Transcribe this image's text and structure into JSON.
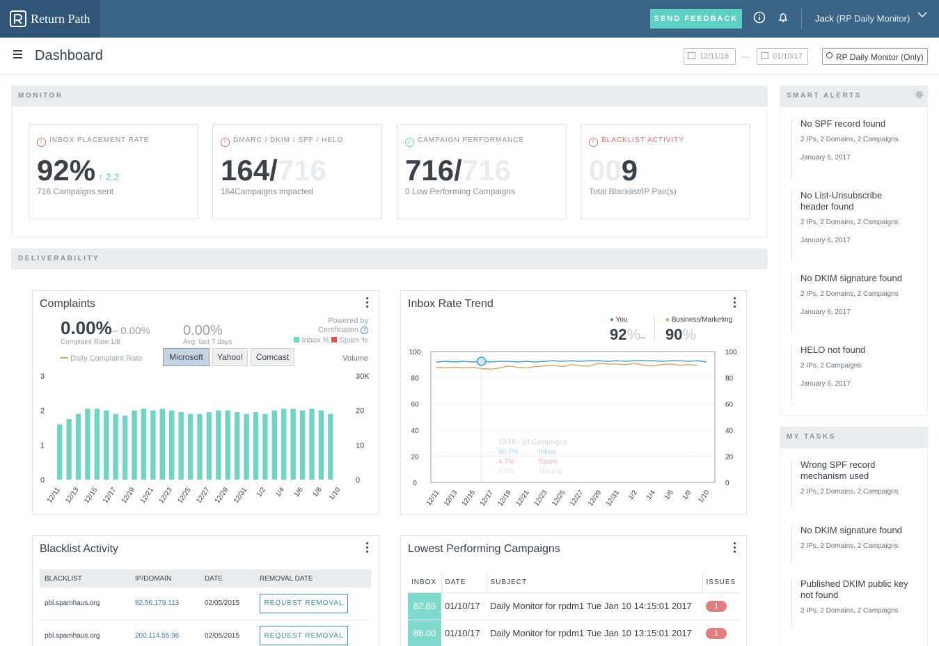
{
  "app": {
    "logo_text": "Return Path",
    "feedback_label": "SEND FEEDBACK",
    "user_name": "Jack",
    "user_account": "(RP Daily Monitor)"
  },
  "toolbar": {
    "page_title": "Dashboard",
    "date_from": "12/11/16",
    "date_to": "01/10/17",
    "date_sep": "—",
    "search_value": "RP Daily Monitor (Only)"
  },
  "monitor": {
    "header": "MONITOR",
    "cards": [
      {
        "label": "INBOX PLACEMENT RATE",
        "value": "92%",
        "delta": "2.2",
        "sub": "716 Campaigns sent"
      },
      {
        "label": "DMARC / DKIM / SPF / HELO",
        "value": "164/",
        "faded": "716",
        "sub": "164Campaigns impacted"
      },
      {
        "label": "CAMPAIGN PERFORMANCE",
        "value": "716/",
        "faded": "716",
        "sub": "0 Low Performing Campaigns"
      },
      {
        "label": "BLACKLIST ACTIVITY",
        "faded": "00",
        "value": "9",
        "sub": "Total Blacklist/IP Pair(s)"
      }
    ]
  },
  "deliverability": {
    "header": "DELIVERABILITY"
  },
  "complaints": {
    "title": "Complaints",
    "rate": "0.00%",
    "rate_compare": "– 0.00%",
    "rate_label": "Complaint Rate 1/8",
    "avg": "0.00%",
    "avg_label": "Avg. last 7 days",
    "powered_by": "Powered by",
    "certification": "Certification",
    "legend_inbox": "Inbox %",
    "legend_spam": "Spam %",
    "legend_daily": "Daily Complaint Rate",
    "volume_label": "Volume",
    "isp_buttons": [
      "Microsoft",
      "Yahoo!",
      "Comcast"
    ]
  },
  "inbox_trend": {
    "title": "Inbox Rate Trend",
    "you_label": "You",
    "you_value": "92",
    "you_pct": "%",
    "you_dash": "--",
    "biz_label": "Business/Marketing",
    "biz_value": "90",
    "biz_pct": "%",
    "tooltip": [
      "12/16 - 24 Campaigns",
      "90.7%",
      "Inbox",
      "4.7%",
      "Spam",
      "4.6%",
      "Missing"
    ]
  },
  "chart_data": [
    {
      "type": "bar",
      "title": "Complaints",
      "categories": [
        "12/11",
        "12/12",
        "12/13",
        "12/14",
        "12/15",
        "12/16",
        "12/17",
        "12/18",
        "12/19",
        "12/20",
        "12/21",
        "12/22",
        "12/23",
        "12/24",
        "12/25",
        "12/26",
        "12/27",
        "12/28",
        "12/29",
        "12/30",
        "12/31",
        "1/1",
        "1/2",
        "1/3",
        "1/4",
        "1/5",
        "1/6",
        "1/7",
        "1/8",
        "1/9",
        "1/10"
      ],
      "tick_labels": [
        "12/11",
        "12/13",
        "12/15",
        "12/17",
        "12/19",
        "12/21",
        "12/23",
        "12/25",
        "12/27",
        "12/29",
        "12/31",
        "1/2",
        "1/4",
        "1/6",
        "1/8",
        "1/10"
      ],
      "series": [
        {
          "name": "Volume",
          "values": [
            16000,
            17500,
            19000,
            20500,
            20500,
            20000,
            19000,
            18500,
            20000,
            20500,
            20000,
            20500,
            20000,
            19500,
            19000,
            19000,
            19500,
            20000,
            20000,
            19500,
            19000,
            19500,
            19000,
            20000,
            20500,
            20500,
            20000,
            20500,
            20000,
            19000,
            null
          ]
        }
      ],
      "yleft_ticks": [
        "0",
        "1",
        "2",
        "3"
      ],
      "yright_ticks": [
        "0",
        "10",
        "20",
        "30K"
      ],
      "ylim": [
        0,
        30000
      ],
      "colors": {
        "bar": "#6fd4c2",
        "complaint_line": "#e0a458"
      }
    },
    {
      "type": "line",
      "title": "Inbox Rate Trend",
      "x": [
        "12/11",
        "12/12",
        "12/13",
        "12/14",
        "12/15",
        "12/16",
        "12/17",
        "12/18",
        "12/19",
        "12/20",
        "12/21",
        "12/22",
        "12/23",
        "12/24",
        "12/25",
        "12/26",
        "12/27",
        "12/28",
        "12/29",
        "12/30",
        "12/31",
        "1/1",
        "1/2",
        "1/3",
        "1/4",
        "1/5",
        "1/6",
        "1/7",
        "1/8",
        "1/9",
        "1/10"
      ],
      "tick_labels": [
        "12/11",
        "12/13",
        "12/15",
        "12/17",
        "12/19",
        "12/21",
        "12/23",
        "12/25",
        "12/27",
        "12/29",
        "12/31",
        "1/2",
        "1/4",
        "1/6",
        "1/8",
        "1/10"
      ],
      "series": [
        {
          "name": "You",
          "values": [
            92,
            92.5,
            92,
            92.5,
            92,
            92.5,
            92,
            92.5,
            92.5,
            92,
            92.5,
            92,
            92.5,
            93,
            92.5,
            93,
            92.5,
            93,
            93,
            92.5,
            93,
            92.5,
            93,
            93,
            93,
            92.5,
            93,
            93,
            92.5,
            93,
            92
          ]
        },
        {
          "name": "Business/Marketing",
          "values": [
            88,
            87.5,
            88,
            87.5,
            88,
            87,
            86.5,
            87.5,
            89,
            88,
            87.5,
            88.5,
            89,
            89.5,
            88.5,
            90,
            89,
            89,
            91,
            90.5,
            90.5,
            90,
            91,
            89.5,
            89,
            90,
            90.5,
            89.5,
            90,
            89.5,
            null
          ]
        }
      ],
      "yticks": [
        "0",
        "20",
        "40",
        "60",
        "80",
        "100"
      ],
      "ylim": [
        0,
        100
      ],
      "highlight_index": 5,
      "colors": {
        "you": "#3b9bd1",
        "biz": "#d9a15a"
      }
    }
  ],
  "smart_alerts": {
    "header": "SMART ALERTS",
    "items": [
      {
        "title": "No SPF record found",
        "meta": "2 IPs, 2 Domains, 2 Campaigns",
        "date": "January 6, 2017"
      },
      {
        "title": "No List-Unsubscribe header found",
        "meta": "2 IPs, 2 Domains, 2 Campaigns",
        "date": "January 6, 2017"
      },
      {
        "title": "No DKIM signature found",
        "meta": "2 IPs, 2 Domains, 2 Campaigns",
        "date": "January 6, 2017"
      },
      {
        "title": "HELO not found",
        "meta": "2 IPs, 2 Campaigns",
        "date": "January 6, 2017"
      }
    ]
  },
  "my_tasks": {
    "header": "MY TASKS",
    "items": [
      {
        "title": "Wrong SPF record mechanism used",
        "meta": "2 IPs, 2 Domains, 2 Campaigns"
      },
      {
        "title": "No DKIM signature found",
        "meta": "2 IPs, 2 Domains, 2 Campaigns"
      },
      {
        "title": "Published DKIM public key not found",
        "meta": "2 IPs, 2 Domains, 2 Campaigns"
      }
    ]
  },
  "blacklist": {
    "title": "Blacklist Activity",
    "columns": [
      "BLACKLIST",
      "IP/DOMAIN",
      "DATE",
      "REMOVAL DATE"
    ],
    "rows": [
      {
        "blacklist": "pbl.spamhaus.org",
        "ip": "82.56.179.113",
        "date": "02/05/2015",
        "action": "REQUEST REMOVAL"
      },
      {
        "blacklist": "pbl.spamhaus.org",
        "ip": "200.114.55.98",
        "date": "02/05/2015",
        "action": "REQUEST REMOVAL"
      }
    ]
  },
  "lowest": {
    "title": "Lowest Performing Campaigns",
    "columns": [
      "INBOX",
      "DATE",
      "SUBJECT",
      "ISSUES"
    ],
    "rows": [
      {
        "inbox": "82.85",
        "date": "01/10/17",
        "subject": "Daily Monitor for rpdm1 Tue Jan 10 14:15:01 2017",
        "issues": "1"
      },
      {
        "inbox": "88.00",
        "date": "01/10/17",
        "subject": "Daily Monitor for rpdm1 Tue Jan 10 13:15:01 2017",
        "issues": "1"
      }
    ]
  }
}
